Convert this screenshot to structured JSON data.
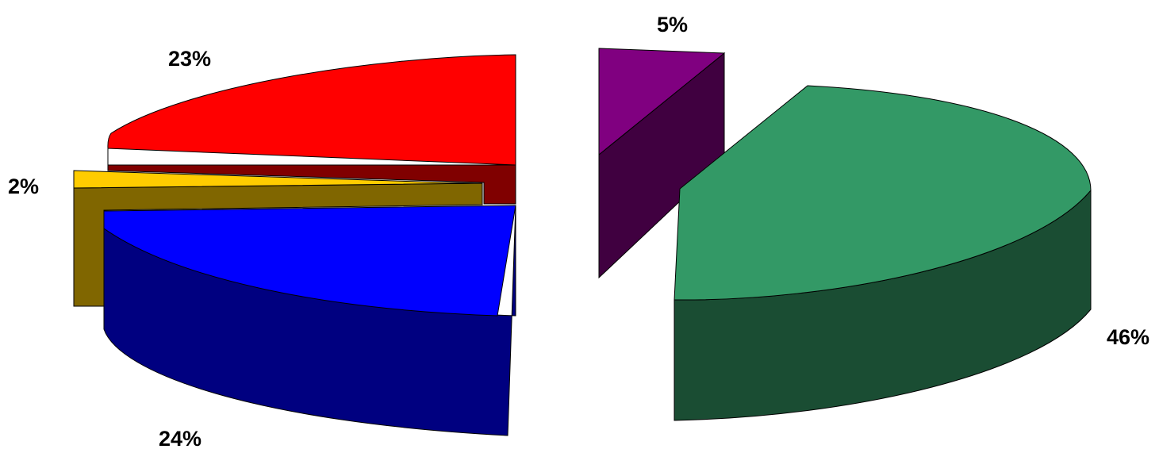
{
  "chart_data": {
    "type": "pie",
    "style": "3d-exploded",
    "slices": [
      {
        "label": "23%",
        "value": 23,
        "top_color": "#ff0000",
        "side_color": "#800000"
      },
      {
        "label": "2%",
        "value": 2,
        "top_color": "#ffcc00",
        "side_color": "#806600"
      },
      {
        "label": "24%",
        "value": 24,
        "top_color": "#0000ff",
        "side_color": "#000080"
      },
      {
        "label": "5%",
        "value": 5,
        "top_color": "#800080",
        "side_color": "#400040"
      },
      {
        "label": "46%",
        "value": 46,
        "top_color": "#339966",
        "side_color": "#1a4d33"
      }
    ],
    "title": "",
    "legend": "none"
  }
}
